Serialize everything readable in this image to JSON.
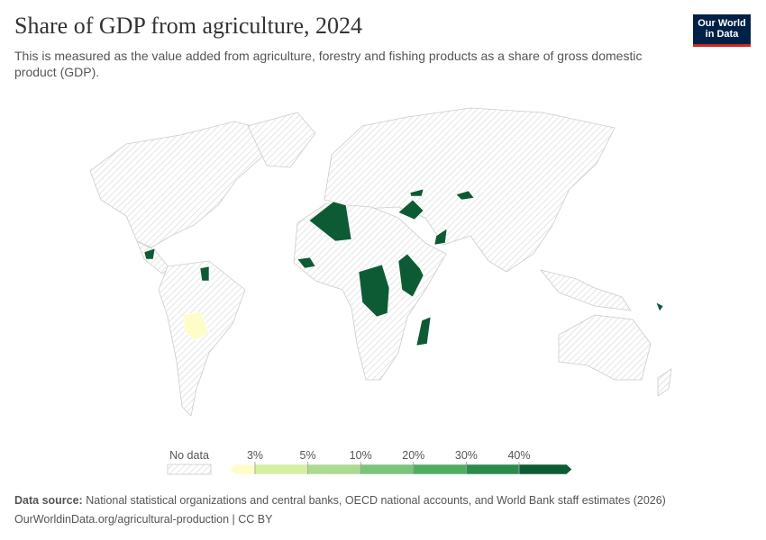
{
  "header": {
    "title": "Share of GDP from agriculture, 2024",
    "subtitle": "This is measured as the value added from agriculture, forestry and fishing products as a share of gross domestic product (GDP).",
    "logo": [
      "Our World",
      "in Data"
    ]
  },
  "legend": {
    "no_data": "No data",
    "ticks": [
      {
        "value": 3,
        "label": "3%"
      },
      {
        "value": 5,
        "label": "5%"
      },
      {
        "value": 10,
        "label": "10%"
      },
      {
        "value": 20,
        "label": "20%"
      },
      {
        "value": 30,
        "label": "30%"
      },
      {
        "value": 40,
        "label": "40%"
      }
    ],
    "colors": [
      "#fefdc9",
      "#d6efa3",
      "#acda93",
      "#7cc47d",
      "#4fad62",
      "#2b8b4b",
      "#0d5b34"
    ]
  },
  "footer": {
    "source_label": "Data source:",
    "source_text": "National statistical organizations and central banks, OECD national accounts, and World Bank staff estimates (2026)",
    "url": "OurWorldinData.org/agricultural-production | CC BY"
  }
}
